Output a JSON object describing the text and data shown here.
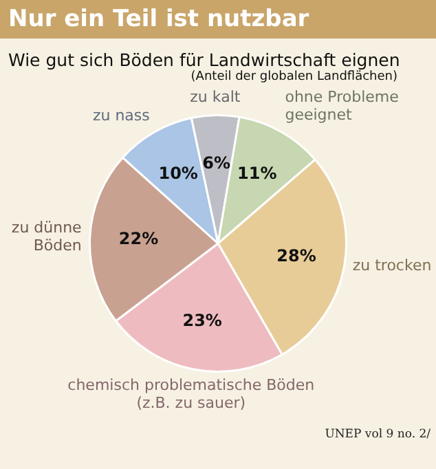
{
  "chart_data": {
    "type": "pie",
    "title": "Nur ein Teil ist nutzbar",
    "subtitle": "Wie gut sich Böden für Landwirtschaft eignen",
    "annotations": [
      "(Anteil der globalen Landflächen)",
      "UNEP vol 9 no. 2/"
    ],
    "categories": [
      "zu kalt",
      "ohne Probleme geeignet",
      "zu trocken",
      "chemisch problematische Böden (z.B. zu sauer)",
      "zu dünne Böden",
      "zu nass"
    ],
    "values": [
      6,
      11,
      28,
      23,
      22,
      10
    ],
    "value_labels": [
      "6%",
      "11%",
      "28%",
      "23%",
      "22%",
      "10%"
    ],
    "colors": [
      "#bebec6",
      "#c6d7b1",
      "#e8cc98",
      "#eebcc0",
      "#c9a190",
      "#aac5e5"
    ],
    "legend": false
  }
}
